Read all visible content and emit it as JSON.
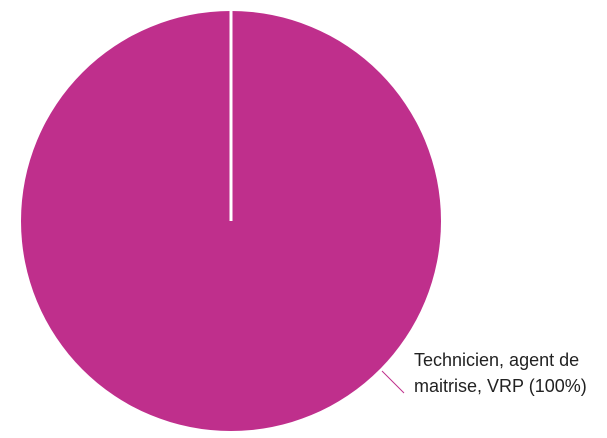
{
  "chart_data": {
    "type": "pie",
    "categories": [
      "Technicien, agent de maitrise, VRP"
    ],
    "values": [
      100
    ],
    "value_labels": [
      "(100%)"
    ],
    "colors": [
      "#bf2f8c"
    ]
  }
}
